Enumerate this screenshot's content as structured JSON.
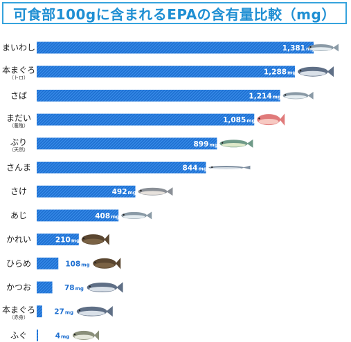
{
  "title": "可食部100gに含まれるEPAの含有量比較（mg）",
  "unit": "mg",
  "colors": {
    "bar": "#1e6fd0",
    "bar_stripe": "#2f86e6",
    "title": "#1f8fd3",
    "frame": "#35a3dd",
    "value_inside": "#ffffff",
    "value_outside": "#1e6fd0"
  },
  "chart_data": {
    "type": "bar",
    "orientation": "horizontal",
    "title": "可食部100gに含まれるEPAの含有量比較（mg）",
    "unit": "mg",
    "xlim": [
      0,
      1381
    ],
    "categories": [
      {
        "name": "まいわし",
        "sub": "",
        "value": 1381,
        "label": "1,381",
        "icon": "sardine-icon"
      },
      {
        "name": "本まぐろ",
        "sub": "（トロ）",
        "value": 1288,
        "label": "1,288",
        "icon": "tuna-icon"
      },
      {
        "name": "さば",
        "sub": "",
        "value": 1214,
        "label": "1,214",
        "icon": "mackerel-icon"
      },
      {
        "name": "まだい",
        "sub": "（養殖）",
        "value": 1085,
        "label": "1,085",
        "icon": "sea-bream-icon"
      },
      {
        "name": "ぶり",
        "sub": "（天然）",
        "value": 899,
        "label": "899",
        "icon": "yellowtail-icon"
      },
      {
        "name": "さんま",
        "sub": "",
        "value": 844,
        "label": "844",
        "icon": "saury-icon"
      },
      {
        "name": "さけ",
        "sub": "",
        "value": 492,
        "label": "492",
        "icon": "salmon-icon"
      },
      {
        "name": "あじ",
        "sub": "",
        "value": 408,
        "label": "408",
        "icon": "horse-mackerel-icon"
      },
      {
        "name": "かれい",
        "sub": "",
        "value": 210,
        "label": "210",
        "icon": "flounder-icon"
      },
      {
        "name": "ひらめ",
        "sub": "",
        "value": 108,
        "label": "108",
        "icon": "halibut-icon"
      },
      {
        "name": "かつお",
        "sub": "",
        "value": 78,
        "label": "78",
        "icon": "bonito-icon"
      },
      {
        "name": "本まぐろ",
        "sub": "（赤身）",
        "value": 27,
        "label": "27",
        "icon": "tuna-lean-icon"
      },
      {
        "name": "ふぐ",
        "sub": "",
        "value": 4,
        "label": "4",
        "icon": "pufferfish-icon"
      }
    ]
  }
}
